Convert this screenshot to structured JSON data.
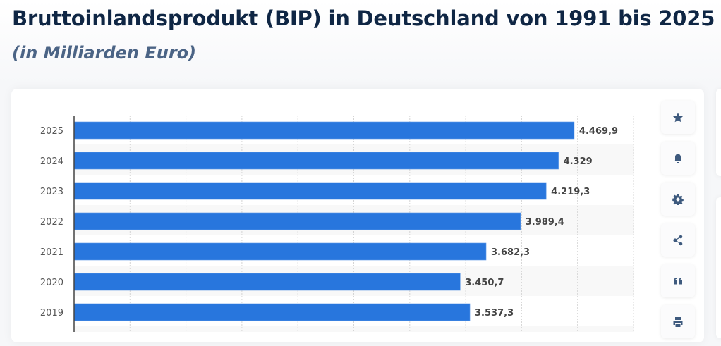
{
  "header": {
    "title": "Bruttoinlandsprodukt (BIP) in Deutschland von 1991 bis 2025",
    "subtitle": "(in Milliarden Euro)"
  },
  "toolbar": {
    "buttons": [
      {
        "name": "favorite",
        "icon": "star-icon"
      },
      {
        "name": "notification",
        "icon": "bell-icon"
      },
      {
        "name": "settings",
        "icon": "gear-icon"
      },
      {
        "name": "share",
        "icon": "share-icon"
      },
      {
        "name": "cite",
        "icon": "quote-icon"
      },
      {
        "name": "print",
        "icon": "printer-icon"
      }
    ]
  },
  "colors": {
    "bar": "#2876dd",
    "title": "#0f2644",
    "subtitle": "#4b6485",
    "icon": "#3e5a7e",
    "band": "#f8f8f8"
  },
  "chart_data": {
    "type": "bar",
    "orientation": "horizontal",
    "title": "Bruttoinlandsprodukt (BIP) in Deutschland von 1991 bis 2025",
    "subtitle": "(in Milliarden Euro)",
    "xlabel": "",
    "ylabel": "",
    "unit": "Milliarden Euro",
    "categories": [
      "2025",
      "2024",
      "2023",
      "2022",
      "2021",
      "2020",
      "2019"
    ],
    "values": [
      4469.9,
      4329,
      4219.3,
      3989.4,
      3682.3,
      3450.7,
      3537.3
    ],
    "value_labels": [
      "4.469,9",
      "4.329",
      "4.219,3",
      "3.989,4",
      "3.682,3",
      "3.450,7",
      "3.537,3"
    ],
    "xlim": [
      0,
      5000
    ],
    "grid_step": 500,
    "grid": true,
    "legend": "none"
  }
}
